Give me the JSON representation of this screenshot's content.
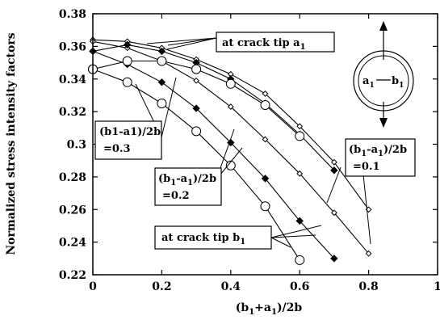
{
  "chart_data": {
    "type": "line",
    "xlabel_main": "(b",
    "xlabel_sub1": "1",
    "xlabel_mid": "+a",
    "xlabel_sub2": "1",
    "xlabel_end": ")/2b",
    "ylabel": "Normalized stress intensity factors",
    "xlim": [
      0,
      1
    ],
    "ylim": [
      0.22,
      0.38
    ],
    "xticks": [
      "0",
      "0.2",
      "0.4",
      "0.6",
      "0.8",
      "1"
    ],
    "xtick_values": [
      0,
      0.2,
      0.4,
      0.6,
      0.8,
      1
    ],
    "yticks": [
      "0.22",
      "0.24",
      "0.26",
      "0.28",
      "0.3",
      "0.32",
      "0.34",
      "0.36",
      "0.38"
    ],
    "ytick_values": [
      0.22,
      0.24,
      0.26,
      0.28,
      0.3,
      0.32,
      0.34,
      0.36,
      0.38
    ],
    "grid": false,
    "series": [
      {
        "group": "0.1",
        "tip": "a",
        "marker": "diamond-open",
        "x": [
          0,
          0.1,
          0.2,
          0.3,
          0.4,
          0.5,
          0.6,
          0.7,
          0.8
        ],
        "y": [
          0.364,
          0.363,
          0.359,
          0.352,
          0.343,
          0.331,
          0.311,
          0.289,
          0.26
        ]
      },
      {
        "group": "0.1",
        "tip": "b",
        "marker": "diamond-open",
        "x": [
          0,
          0.1,
          0.2,
          0.3,
          0.4,
          0.5,
          0.6,
          0.7,
          0.8
        ],
        "y": [
          0.363,
          0.359,
          0.351,
          0.339,
          0.323,
          0.303,
          0.282,
          0.258,
          0.233
        ]
      },
      {
        "group": "0.2",
        "tip": "a",
        "marker": "diamond-filled",
        "x": [
          0,
          0.1,
          0.2,
          0.3,
          0.4,
          0.5,
          0.6,
          0.7
        ],
        "y": [
          0.357,
          0.361,
          0.357,
          0.35,
          0.34,
          0.325,
          0.306,
          0.284
        ]
      },
      {
        "group": "0.2",
        "tip": "b",
        "marker": "diamond-filled",
        "x": [
          0,
          0.1,
          0.2,
          0.3,
          0.4,
          0.5,
          0.6,
          0.7
        ],
        "y": [
          0.357,
          0.349,
          0.338,
          0.322,
          0.301,
          0.279,
          0.253,
          0.23
        ]
      },
      {
        "group": "0.3",
        "tip": "a",
        "marker": "circle-open",
        "x": [
          0,
          0.1,
          0.2,
          0.3,
          0.4,
          0.5,
          0.6
        ],
        "y": [
          0.346,
          0.351,
          0.351,
          0.346,
          0.337,
          0.324,
          0.305
        ]
      },
      {
        "group": "0.3",
        "tip": "b",
        "marker": "circle-open",
        "x": [
          0,
          0.1,
          0.2,
          0.3,
          0.4,
          0.5,
          0.6
        ],
        "y": [
          0.346,
          0.338,
          0.325,
          0.308,
          0.287,
          0.262,
          0.229
        ]
      }
    ],
    "annotations": {
      "tip_a_text": "at crack tip a",
      "tip_a_sub": "1",
      "tip_b_text": "at crack tip b",
      "tip_b_sub": "1",
      "g03_line1": "(b1-a1)/2b",
      "g03_line2": "=0.3",
      "g02_pre": "(b",
      "g02_sub1": "1",
      "g02_mid": "-a",
      "g02_sub2": "1",
      "g02_post": ")/2b",
      "g02_line2": "=0.2",
      "g01_pre": "(b",
      "g01_sub1": "1",
      "g01_mid": "-a",
      "g01_sub2": "1",
      "g01_post": ")/2b",
      "g01_line2": "=0.1",
      "inset_a": "a",
      "inset_a_sub": "1",
      "inset_b": "b",
      "inset_b_sub": "1"
    }
  }
}
